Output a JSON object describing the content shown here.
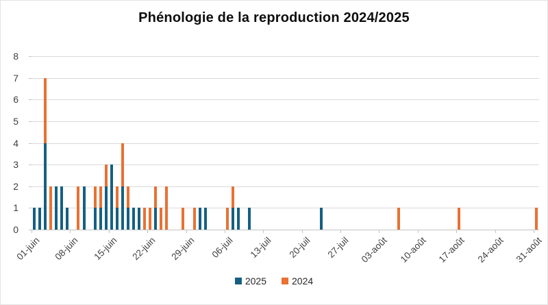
{
  "title": "Phénologie de la reproduction 2024/2025",
  "colors": {
    "series_2025": "#156082",
    "series_2024": "#e97132",
    "gridline": "#d9d9d9",
    "axis": "#c3c3c3",
    "tick_text": "#404040",
    "title_text": "#0d0d0d"
  },
  "legend": {
    "items": [
      {
        "label": "2025",
        "color": "#156082"
      },
      {
        "label": "2024",
        "color": "#e97132"
      }
    ]
  },
  "chart_data": {
    "type": "bar",
    "stacked": true,
    "title": "Phénologie de la reproduction 2024/2025",
    "xlabel": "",
    "ylabel": "",
    "ylim": [
      0,
      8
    ],
    "yticks": [
      0,
      1,
      2,
      3,
      4,
      5,
      6,
      7,
      8
    ],
    "grid": "horizontal",
    "legend_position": "bottom",
    "days_total": 92,
    "x_ticks": [
      {
        "day": 0,
        "label": "01-juin"
      },
      {
        "day": 7,
        "label": "08-juin"
      },
      {
        "day": 14,
        "label": "15-juin"
      },
      {
        "day": 21,
        "label": "22-juin"
      },
      {
        "day": 28,
        "label": "29-juin"
      },
      {
        "day": 35,
        "label": "06-juil"
      },
      {
        "day": 42,
        "label": "13-juil"
      },
      {
        "day": 49,
        "label": "20-juil"
      },
      {
        "day": 56,
        "label": "27-juil"
      },
      {
        "day": 63,
        "label": "03-août"
      },
      {
        "day": 70,
        "label": "10-août"
      },
      {
        "day": 77,
        "label": "17-août"
      },
      {
        "day": 84,
        "label": "24-août"
      },
      {
        "day": 91,
        "label": "31-août"
      }
    ],
    "series_names": [
      "2025",
      "2024"
    ],
    "points": [
      {
        "day": 0,
        "date": "01-juin",
        "y2025": 1,
        "y2024": 0
      },
      {
        "day": 1,
        "date": "02-juin",
        "y2025": 1,
        "y2024": 0
      },
      {
        "day": 2,
        "date": "03-juin",
        "y2025": 4,
        "y2024": 3
      },
      {
        "day": 3,
        "date": "04-juin",
        "y2025": 0,
        "y2024": 2
      },
      {
        "day": 4,
        "date": "05-juin",
        "y2025": 2,
        "y2024": 0
      },
      {
        "day": 5,
        "date": "06-juin",
        "y2025": 2,
        "y2024": 0
      },
      {
        "day": 6,
        "date": "07-juin",
        "y2025": 1,
        "y2024": 0
      },
      {
        "day": 8,
        "date": "09-juin",
        "y2025": 0,
        "y2024": 2
      },
      {
        "day": 9,
        "date": "10-juin",
        "y2025": 2,
        "y2024": 0
      },
      {
        "day": 11,
        "date": "12-juin",
        "y2025": 1,
        "y2024": 1
      },
      {
        "day": 12,
        "date": "13-juin",
        "y2025": 1,
        "y2024": 1
      },
      {
        "day": 13,
        "date": "14-juin",
        "y2025": 2,
        "y2024": 1
      },
      {
        "day": 14,
        "date": "15-juin",
        "y2025": 3,
        "y2024": 0
      },
      {
        "day": 15,
        "date": "16-juin",
        "y2025": 1,
        "y2024": 1
      },
      {
        "day": 16,
        "date": "17-juin",
        "y2025": 2,
        "y2024": 2
      },
      {
        "day": 17,
        "date": "18-juin",
        "y2025": 1,
        "y2024": 1
      },
      {
        "day": 18,
        "date": "19-juin",
        "y2025": 1,
        "y2024": 0
      },
      {
        "day": 19,
        "date": "20-juin",
        "y2025": 1,
        "y2024": 0
      },
      {
        "day": 20,
        "date": "21-juin",
        "y2025": 0,
        "y2024": 1
      },
      {
        "day": 21,
        "date": "22-juin",
        "y2025": 0,
        "y2024": 1
      },
      {
        "day": 22,
        "date": "23-juin",
        "y2025": 1,
        "y2024": 1
      },
      {
        "day": 23,
        "date": "24-juin",
        "y2025": 0,
        "y2024": 1
      },
      {
        "day": 24,
        "date": "25-juin",
        "y2025": 0,
        "y2024": 2
      },
      {
        "day": 27,
        "date": "28-juin",
        "y2025": 0,
        "y2024": 1
      },
      {
        "day": 29,
        "date": "30-juin",
        "y2025": 0,
        "y2024": 1
      },
      {
        "day": 30,
        "date": "01-juil",
        "y2025": 1,
        "y2024": 0
      },
      {
        "day": 31,
        "date": "02-juil",
        "y2025": 1,
        "y2024": 0
      },
      {
        "day": 35,
        "date": "06-juil",
        "y2025": 0,
        "y2024": 1
      },
      {
        "day": 36,
        "date": "07-juil",
        "y2025": 1,
        "y2024": 1
      },
      {
        "day": 37,
        "date": "08-juil",
        "y2025": 1,
        "y2024": 0
      },
      {
        "day": 39,
        "date": "10-juil",
        "y2025": 1,
        "y2024": 0
      },
      {
        "day": 52,
        "date": "23-juil",
        "y2025": 1,
        "y2024": 0
      },
      {
        "day": 66,
        "date": "06-août",
        "y2025": 0,
        "y2024": 1
      },
      {
        "day": 77,
        "date": "17-août",
        "y2025": 0,
        "y2024": 1
      },
      {
        "day": 91,
        "date": "31-août",
        "y2025": 0,
        "y2024": 1
      }
    ]
  }
}
